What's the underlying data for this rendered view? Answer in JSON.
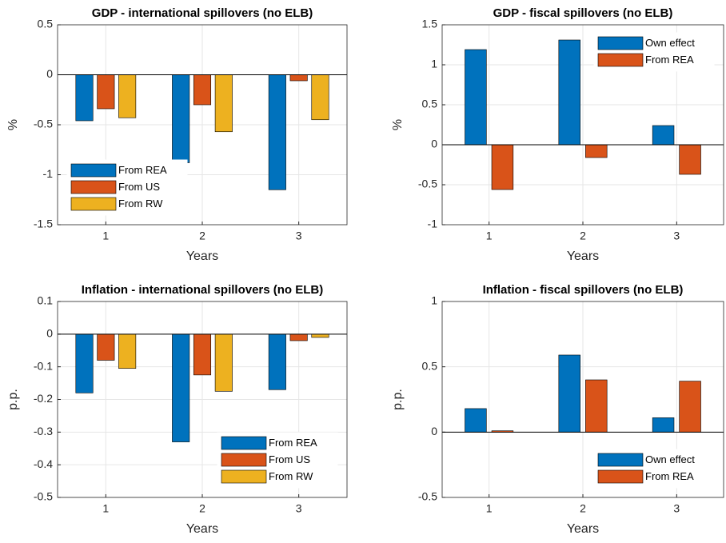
{
  "chart_data": [
    {
      "type": "bar",
      "title": "GDP - international spillovers (no ELB)",
      "xlabel": "Years",
      "ylabel": "%",
      "x": [
        1,
        2,
        3
      ],
      "xlim": [
        0.5,
        3.5
      ],
      "xticks": [
        1,
        2,
        3
      ],
      "ylim": [
        -1.5,
        0.5
      ],
      "yticks": [
        -1.5,
        -1,
        -0.5,
        0,
        0.5
      ],
      "grid": true,
      "legend": "lower left",
      "series": [
        {
          "name": "From REA",
          "color": "#0072bd",
          "values": [
            -0.46,
            -0.88,
            -1.15
          ]
        },
        {
          "name": "From US",
          "color": "#d95319",
          "values": [
            -0.34,
            -0.3,
            -0.06
          ]
        },
        {
          "name": "From RW",
          "color": "#edb120",
          "values": [
            -0.43,
            -0.57,
            -0.45
          ]
        }
      ]
    },
    {
      "type": "bar",
      "title": "GDP - fiscal spillovers (no ELB)",
      "xlabel": "Years",
      "ylabel": "%",
      "x": [
        1,
        2,
        3
      ],
      "xlim": [
        0.5,
        3.5
      ],
      "xticks": [
        1,
        2,
        3
      ],
      "ylim": [
        -1,
        1.5
      ],
      "yticks": [
        -1,
        -0.5,
        0,
        0.5,
        1,
        1.5
      ],
      "grid": true,
      "legend": "upper right",
      "series": [
        {
          "name": "Own effect",
          "color": "#0072bd",
          "values": [
            1.19,
            1.31,
            0.24
          ]
        },
        {
          "name": "From REA",
          "color": "#d95319",
          "values": [
            -0.56,
            -0.16,
            -0.37
          ]
        }
      ]
    },
    {
      "type": "bar",
      "title": "Inflation - international spillovers (no ELB)",
      "xlabel": "Years",
      "ylabel": "p.p.",
      "x": [
        1,
        2,
        3
      ],
      "xlim": [
        0.5,
        3.5
      ],
      "xticks": [
        1,
        2,
        3
      ],
      "ylim": [
        -0.5,
        0.1
      ],
      "yticks": [
        -0.5,
        -0.4,
        -0.3,
        -0.2,
        -0.1,
        0,
        0.1
      ],
      "grid": true,
      "legend": "lower right",
      "series": [
        {
          "name": "From REA",
          "color": "#0072bd",
          "values": [
            -0.18,
            -0.33,
            -0.17
          ]
        },
        {
          "name": "From US",
          "color": "#d95319",
          "values": [
            -0.08,
            -0.125,
            -0.02
          ]
        },
        {
          "name": "From RW",
          "color": "#edb120",
          "values": [
            -0.105,
            -0.175,
            -0.01
          ]
        }
      ]
    },
    {
      "type": "bar",
      "title": "Inflation - fiscal spillovers (no ELB)",
      "xlabel": "Years",
      "ylabel": "p.p.",
      "x": [
        1,
        2,
        3
      ],
      "xlim": [
        0.5,
        3.5
      ],
      "xticks": [
        1,
        2,
        3
      ],
      "ylim": [
        -0.5,
        1
      ],
      "yticks": [
        -0.5,
        0,
        0.5,
        1
      ],
      "grid": true,
      "legend": "lower right",
      "series": [
        {
          "name": "Own effect",
          "color": "#0072bd",
          "values": [
            0.18,
            0.59,
            0.11
          ]
        },
        {
          "name": "From REA",
          "color": "#d95319",
          "values": [
            0.01,
            0.4,
            0.39
          ]
        }
      ]
    }
  ]
}
